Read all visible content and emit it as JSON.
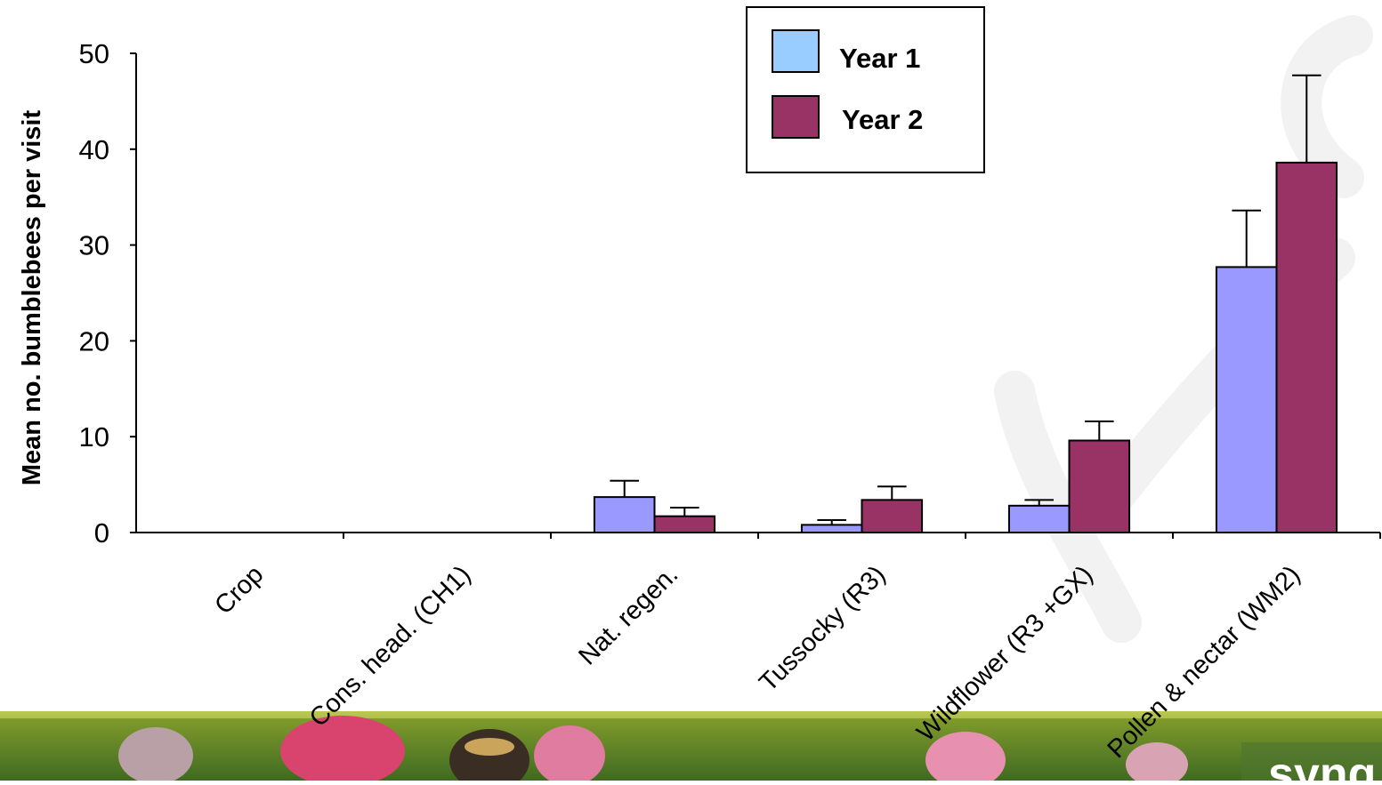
{
  "chart_data": {
    "type": "bar",
    "ylabel": "Mean no. bumblebees per visit",
    "xlabel": "",
    "title": "",
    "ylim": [
      0,
      50
    ],
    "yticks": [
      0,
      10,
      20,
      30,
      40,
      50
    ],
    "grid": false,
    "legend_position": "top-center",
    "categories": [
      "Crop",
      "Cons. head. (CH1)",
      "Nat. regen.",
      "Tussocky (R3)",
      "Wildflower (R3 +GX)",
      "Pollen & nectar (WM2)"
    ],
    "series": [
      {
        "name": "Year 1",
        "color": "#9999ff",
        "legend_color": "#99ccff",
        "values": [
          0,
          0,
          3.7,
          0.8,
          2.8,
          27.7
        ],
        "errors": [
          0,
          0,
          1.7,
          0.5,
          0.6,
          5.9
        ]
      },
      {
        "name": "Year 2",
        "color": "#993366",
        "values": [
          0,
          0,
          1.7,
          3.4,
          9.6,
          38.6
        ],
        "errors": [
          0,
          0,
          0.9,
          1.4,
          2.0,
          9.1
        ]
      }
    ]
  },
  "footer": {
    "brand_text": "syng"
  }
}
